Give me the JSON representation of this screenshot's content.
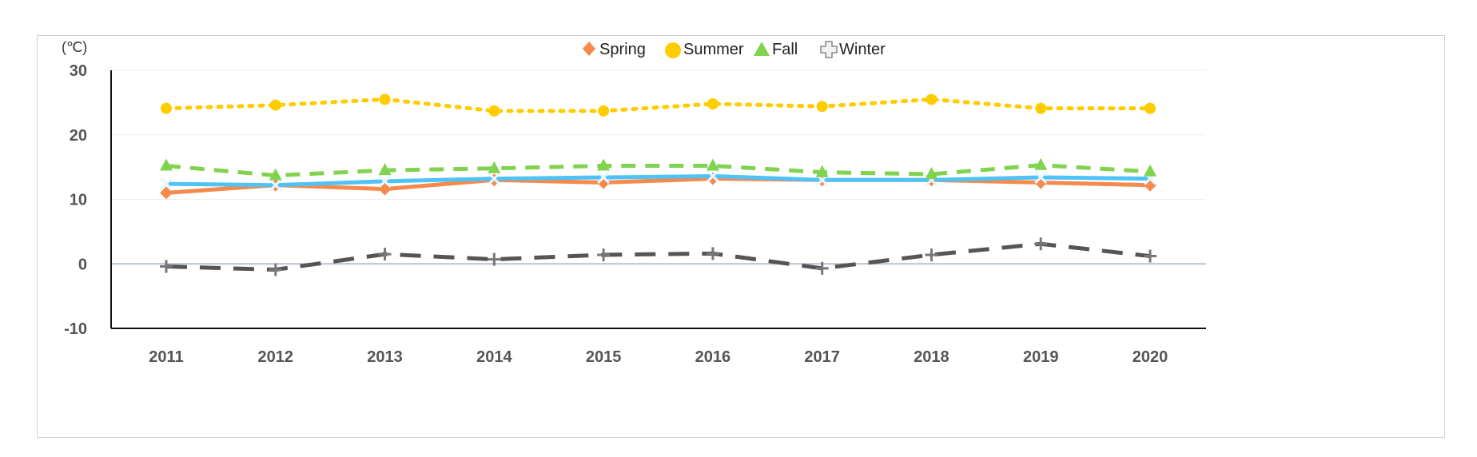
{
  "chart_data": {
    "type": "line",
    "unit_label": "(℃)",
    "x": [
      "2011",
      "2012",
      "2013",
      "2014",
      "2015",
      "2016",
      "2017",
      "2018",
      "2019",
      "2020"
    ],
    "ylim": [
      -10,
      30
    ],
    "yticks": [
      "30",
      "20",
      "10",
      "0",
      "-10"
    ],
    "grid": true,
    "legend_position": "top",
    "series": [
      {
        "name": "Spring",
        "color": "#f58a4b",
        "marker": "diamond",
        "line": "solid",
        "values": [
          11.0,
          12.2,
          11.6,
          13.0,
          12.6,
          13.2,
          13.0,
          13.0,
          12.6,
          12.2
        ]
      },
      {
        "name": "Summer",
        "color": "#ffcc00",
        "marker": "circle",
        "line": "dotted",
        "values": [
          24.1,
          24.6,
          25.5,
          23.7,
          23.7,
          24.8,
          24.4,
          25.5,
          24.1,
          24.1
        ]
      },
      {
        "name": "Fall",
        "color": "#7fd34e",
        "marker": "triangle",
        "line": "dashed",
        "values": [
          15.2,
          13.7,
          14.5,
          14.8,
          15.2,
          15.2,
          14.2,
          13.9,
          15.3,
          14.3
        ]
      },
      {
        "name": "Winter",
        "color": "#555555",
        "marker": "cross",
        "line": "longdash",
        "values": [
          -0.4,
          -0.9,
          1.5,
          0.7,
          1.4,
          1.6,
          -0.7,
          1.4,
          3.1,
          1.2
        ]
      },
      {
        "name": "",
        "color": "#4fc3f7",
        "marker": "x",
        "line": "solid",
        "values": [
          12.4,
          12.2,
          12.8,
          13.2,
          13.4,
          13.6,
          13.0,
          13.0,
          13.4,
          13.2
        ]
      }
    ]
  }
}
